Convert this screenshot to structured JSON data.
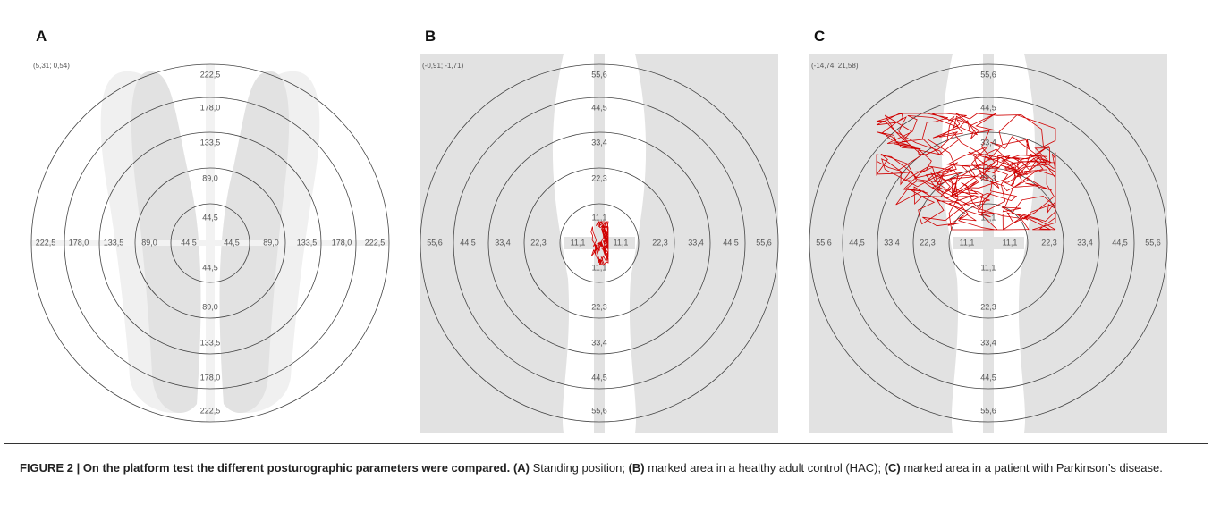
{
  "figure": {
    "panels": [
      {
        "letter": "A",
        "coords": "(5,31; 0,54)",
        "rings": [
          "44,5",
          "89,0",
          "133,5",
          "178,0",
          "222,5"
        ]
      },
      {
        "letter": "B",
        "coords": "(-0,91; -1,71)",
        "rings": [
          "11,1",
          "22,3",
          "33,4",
          "44,5",
          "55,6"
        ]
      },
      {
        "letter": "C",
        "coords": "(-14,74; 21,58)",
        "rings": [
          "11,1",
          "22,3",
          "33,4",
          "44,5",
          "55,6"
        ]
      }
    ],
    "caption": {
      "title": "FIGURE 2 | On the platform test the different posturographic parameters were compared.",
      "parts": [
        {
          "label": "(A)",
          "text": " Standing position; "
        },
        {
          "label": "(B)",
          "text": " marked area in a healthy adult control (HAC); "
        },
        {
          "label": "(C)",
          "text": " marked area in a patient with Parkinson’s disease."
        }
      ]
    }
  }
}
